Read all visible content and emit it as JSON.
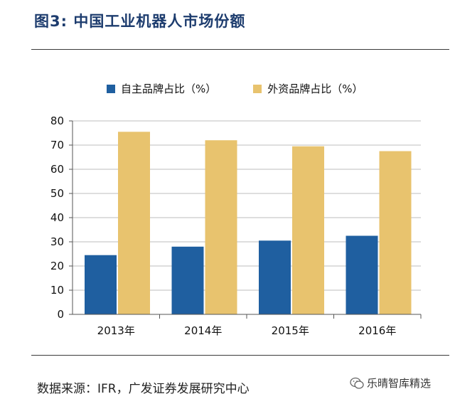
{
  "figure": {
    "title": "图3:  中国工业机器人市场份额",
    "source": "数据来源：IFR，广发证券发展研究中心",
    "watermark": "乐晴智库精选"
  },
  "colors": {
    "domestic": "#1f5fa0",
    "foreign": "#e8c36e",
    "grid": "#bdbdbd",
    "axis": "#555555",
    "title": "#1d3c6e"
  },
  "chart_data": {
    "type": "bar",
    "title": "中国工业机器人市场份额",
    "categories": [
      "2013年",
      "2014年",
      "2015年",
      "2016年"
    ],
    "series": [
      {
        "name": "自主品牌占比（%）",
        "values": [
          24.5,
          28,
          30.5,
          32.5
        ]
      },
      {
        "name": "外资品牌占比（%）",
        "values": [
          75.5,
          72,
          69.5,
          67.5
        ]
      }
    ],
    "yticks": [
      0,
      10,
      20,
      30,
      40,
      50,
      60,
      70,
      80
    ],
    "ylim": [
      0,
      80
    ],
    "xlabel": "",
    "ylabel": "",
    "grid": true,
    "legend": "top"
  }
}
